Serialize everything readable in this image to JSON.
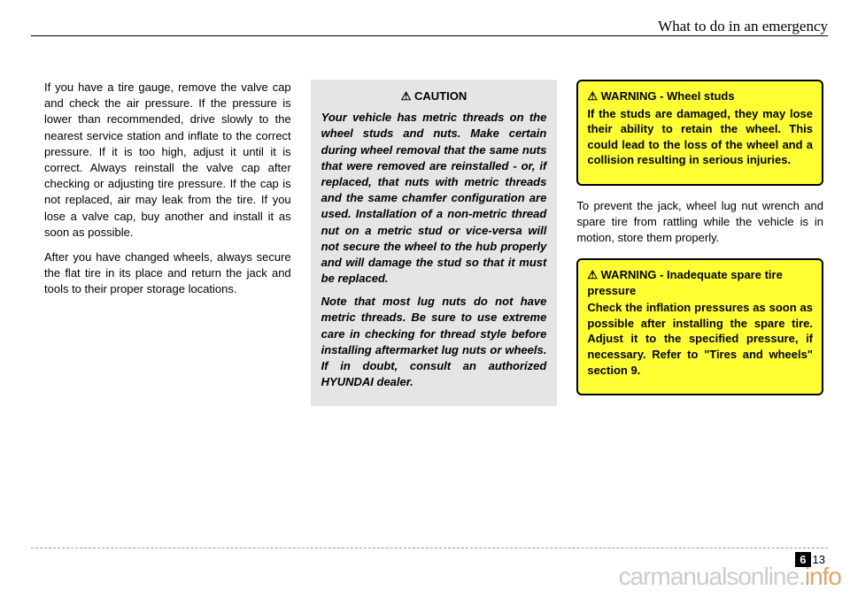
{
  "header": {
    "title": "What to do in an emergency"
  },
  "col1": {
    "p1": "If you have a tire gauge, remove the valve cap and check the air pressure. If the pressure is lower than recommended, drive slowly to the nearest service station and inflate to the correct pressure. If it is too high, adjust it until it is correct. Always reinstall the valve cap after checking or adjusting tire pressure. If the cap is not replaced, air may leak from the tire. If you lose a valve cap, buy another and install it as soon as possible.",
    "p2": "After you have changed wheels, always secure the flat tire in its place and return the jack and tools to their proper storage locations."
  },
  "caution": {
    "title": "CAUTION",
    "p1": "Your vehicle has metric threads on the wheel studs and nuts. Make certain during wheel removal that the same nuts that were removed are reinstalled - or, if replaced, that nuts with metric threads and the same chamfer configuration are used. Installation of a non-metric thread nut on a metric stud or vice-versa will not secure the wheel to the hub properly and will damage the stud so that it must be replaced.",
    "p2": "Note that most lug nuts do not have metric threads. Be sure to use extreme care in checking for thread style before installing aftermarket lug nuts or wheels. If in doubt, consult an authorized HYUNDAI dealer."
  },
  "warning1": {
    "label": "WARNING",
    "sub": "- Wheel studs",
    "body": "If the studs are damaged, they may lose their ability to retain the wheel. This could lead to the loss of the wheel and a collision resulting in serious injuries."
  },
  "mid": "To prevent the jack, wheel lug nut wrench and spare tire from rattling while the vehicle is in motion, store them properly.",
  "warning2": {
    "label": "WARNING",
    "sub": "- Inadequate spare tire pressure",
    "body": "Check the inflation pressures as soon as possible after installing the spare tire. Adjust it to the specified pressure, if necessary. Refer to \"Tires and wheels\" section 9."
  },
  "pagenum": {
    "section": "6",
    "page": "13"
  },
  "watermark": {
    "a": "carmanualsonline.",
    "b": "info"
  }
}
